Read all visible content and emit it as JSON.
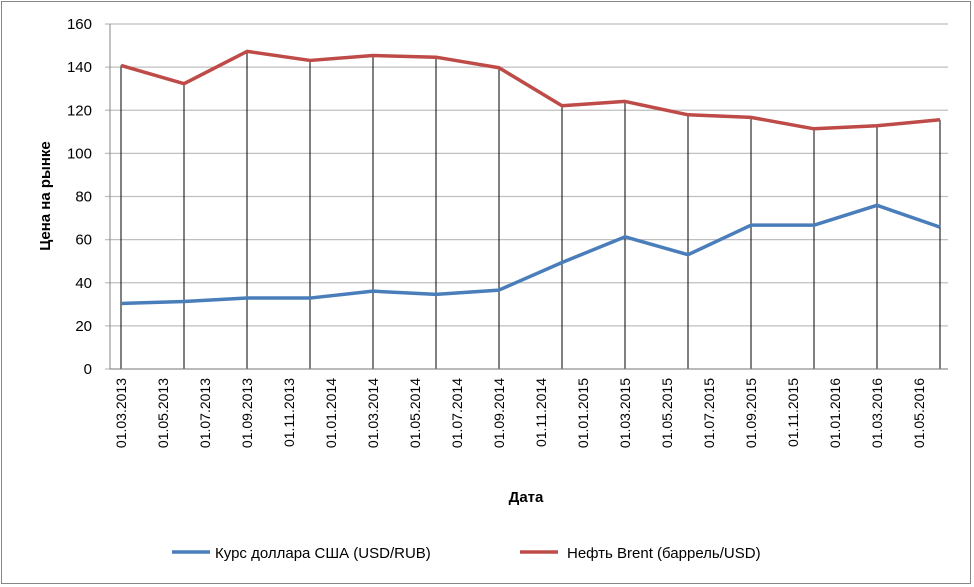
{
  "chart_data": {
    "type": "line",
    "title": "",
    "xlabel": "Дата",
    "ylabel": "Цена на рынке",
    "ylim": [
      0,
      160
    ],
    "yticks": [
      0,
      20,
      40,
      60,
      80,
      100,
      120,
      140,
      160
    ],
    "xtick_labels": [
      "01.03.2013",
      "01.05.2013",
      "01.07.2013",
      "01.09.2013",
      "01.11.2013",
      "01.01.2014",
      "01.03.2014",
      "01.05.2014",
      "01.07.2014",
      "01.09.2014",
      "01.11.2014",
      "01.01.2015",
      "01.03.2015",
      "01.05.2015",
      "01.07.2015",
      "01.09.2015",
      "01.11.2015",
      "01.01.2016",
      "01.03.2016",
      "01.05.2016"
    ],
    "x": [
      "01.03.2013",
      "01.06.2013",
      "01.09.2013",
      "01.12.2013",
      "01.03.2014",
      "01.06.2014",
      "01.09.2014",
      "01.12.2014",
      "01.03.2015",
      "01.06.2015",
      "01.09.2015",
      "01.12.2015",
      "01.03.2016",
      "01.06.2016"
    ],
    "grid": "horizontal",
    "drop_lines": true,
    "legend_position": "bottom",
    "series": [
      {
        "name": "Курс доллара США (USD/RUB)",
        "color": "#4a7ebb",
        "values": [
          30.4,
          31.3,
          32.9,
          32.9,
          36.1,
          34.6,
          36.6,
          49.4,
          61.3,
          53.0,
          66.7,
          66.7,
          75.9,
          65.8
        ]
      },
      {
        "name": "Нефть Brent (баррель/USD)",
        "color": "#be4b48",
        "values": [
          140.8,
          132.3,
          147.3,
          143.1,
          145.4,
          144.6,
          139.7,
          122.1,
          124.1,
          117.9,
          116.7,
          111.4,
          112.8,
          115.6
        ]
      }
    ]
  }
}
